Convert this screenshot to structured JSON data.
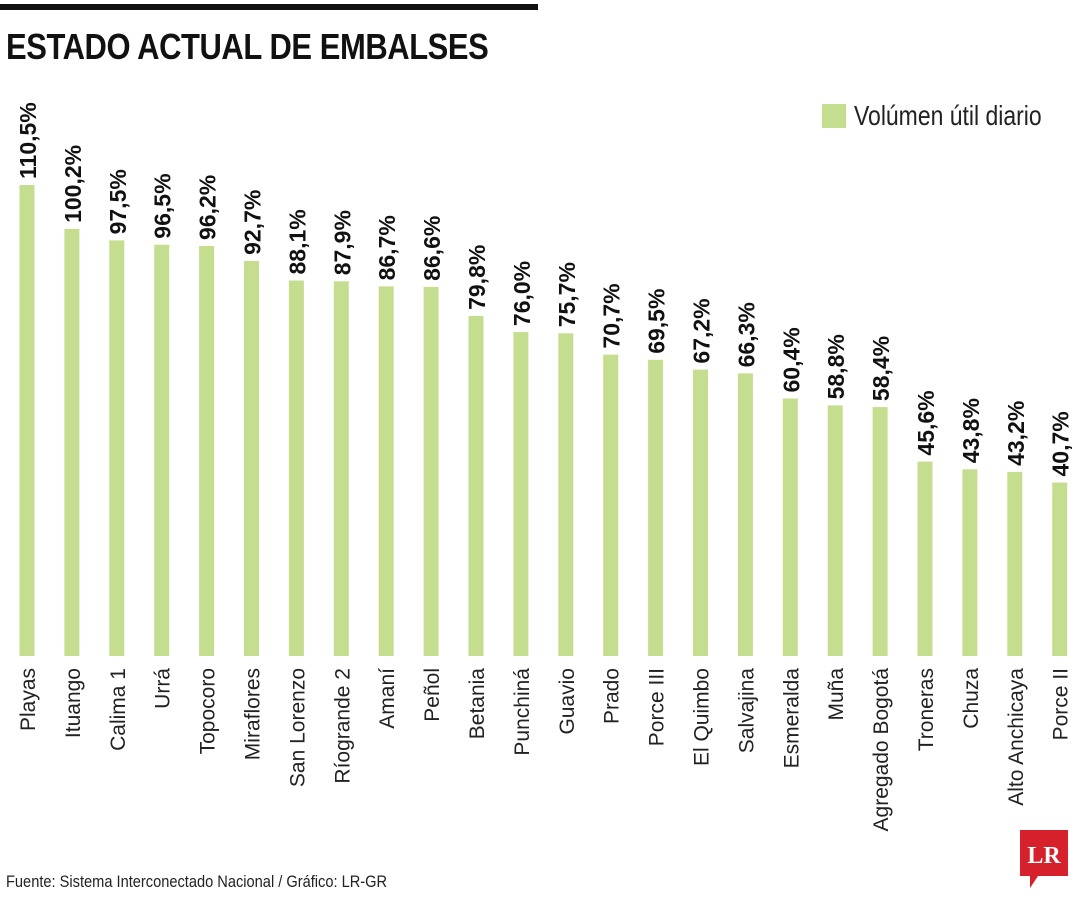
{
  "title": "ESTADO ACTUAL DE EMBALSES",
  "legend": {
    "label": "Volúmen útil diario",
    "color": "#c5dd8f"
  },
  "source": "Fuente: Sistema Interconectado Nacional / Gráfico: LR-GR",
  "logo": {
    "text": "LR",
    "color": "#d6202b"
  },
  "chart_data": {
    "type": "bar",
    "categories": [
      "Playas",
      "Ituango",
      "Calima 1",
      "Urrá",
      "Topocoro",
      "Miraflores",
      "San Lorenzo",
      "Ríogrande 2",
      "Amaní",
      "Peñol",
      "Betania",
      "Punchiná",
      "Guavio",
      "Prado",
      "Porce III",
      "El Quimbo",
      "Salvajina",
      "Esmeralda",
      "Muña",
      "Agregado Bogotá",
      "Troneras",
      "Chuza",
      "Alto Anchicaya",
      "Porce II"
    ],
    "values": [
      110.5,
      100.2,
      97.5,
      96.5,
      96.2,
      92.7,
      88.1,
      87.9,
      86.7,
      86.6,
      79.8,
      76.0,
      75.7,
      70.7,
      69.5,
      67.2,
      66.3,
      60.4,
      58.8,
      58.4,
      45.6,
      43.8,
      43.2,
      40.7
    ],
    "labels": [
      "110,5%",
      "100,2%",
      "97,5%",
      "96,5%",
      "96,2%",
      "92,7%",
      "88,1%",
      "87,9%",
      "86,7%",
      "86,6%",
      "79,8%",
      "76,0%",
      "75,7%",
      "70,7%",
      "69,5%",
      "67,2%",
      "66,3%",
      "60,4%",
      "58,8%",
      "58,4%",
      "45,6%",
      "43,8%",
      "43,2%",
      "40,7%"
    ],
    "series": [
      {
        "name": "Volúmen útil diario",
        "color": "#c5dd8f"
      }
    ],
    "ylim": [
      0,
      110.5
    ],
    "legend_position": "top-right",
    "grid": false
  }
}
